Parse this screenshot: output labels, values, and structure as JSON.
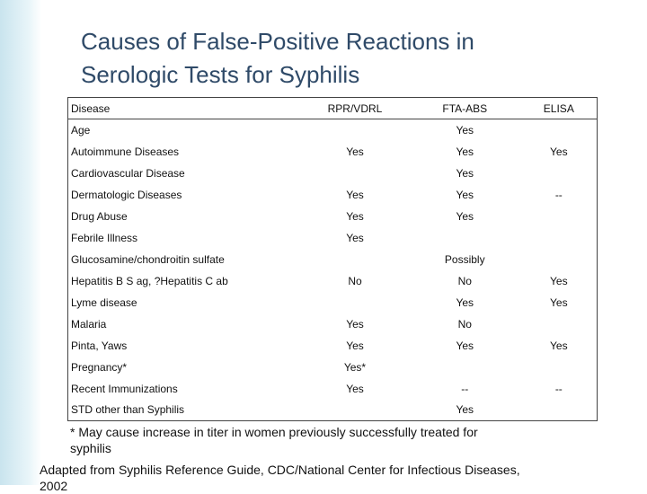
{
  "slide": {
    "title": "Causes of False-Positive Reactions in Serologic Tests for Syphilis",
    "table": {
      "header": [
        "Disease",
        "RPR/VDRL",
        "FTA-ABS",
        "ELISA"
      ],
      "rows": [
        [
          "Age",
          null,
          "Yes",
          null
        ],
        [
          "Autoimmune Diseases",
          "Yes",
          "Yes",
          "Yes"
        ],
        [
          "Cardiovascular Disease",
          null,
          "Yes",
          null
        ],
        [
          "Dermatologic Diseases",
          "Yes",
          "Yes",
          "--"
        ],
        [
          "Drug Abuse",
          "Yes",
          "Yes",
          null
        ],
        [
          "Febrile Illness",
          "Yes",
          null,
          null
        ],
        [
          "Glucosamine/chondroitin sulfate",
          null,
          "Possibly",
          null
        ],
        [
          "Hepatitis B S ag, ?Hepatitis C ab",
          "No",
          "No",
          "Yes"
        ],
        [
          "Lyme disease",
          null,
          "Yes",
          "Yes"
        ],
        [
          "Malaria",
          "Yes",
          "No",
          null
        ],
        [
          "Pinta, Yaws",
          "Yes",
          "Yes",
          "Yes"
        ],
        [
          "Pregnancy*",
          "Yes*",
          null,
          null
        ],
        [
          "Recent Immunizations",
          "Yes",
          "--",
          "--"
        ],
        [
          "STD other than Syphilis",
          null,
          "Yes",
          null
        ]
      ]
    },
    "footnote": "* May cause increase in titer in women previously successfully treated for syphilis",
    "source": "Adapted from  Syphilis Reference Guide, CDC/National Center for Infectious Diseases, 2002"
  }
}
